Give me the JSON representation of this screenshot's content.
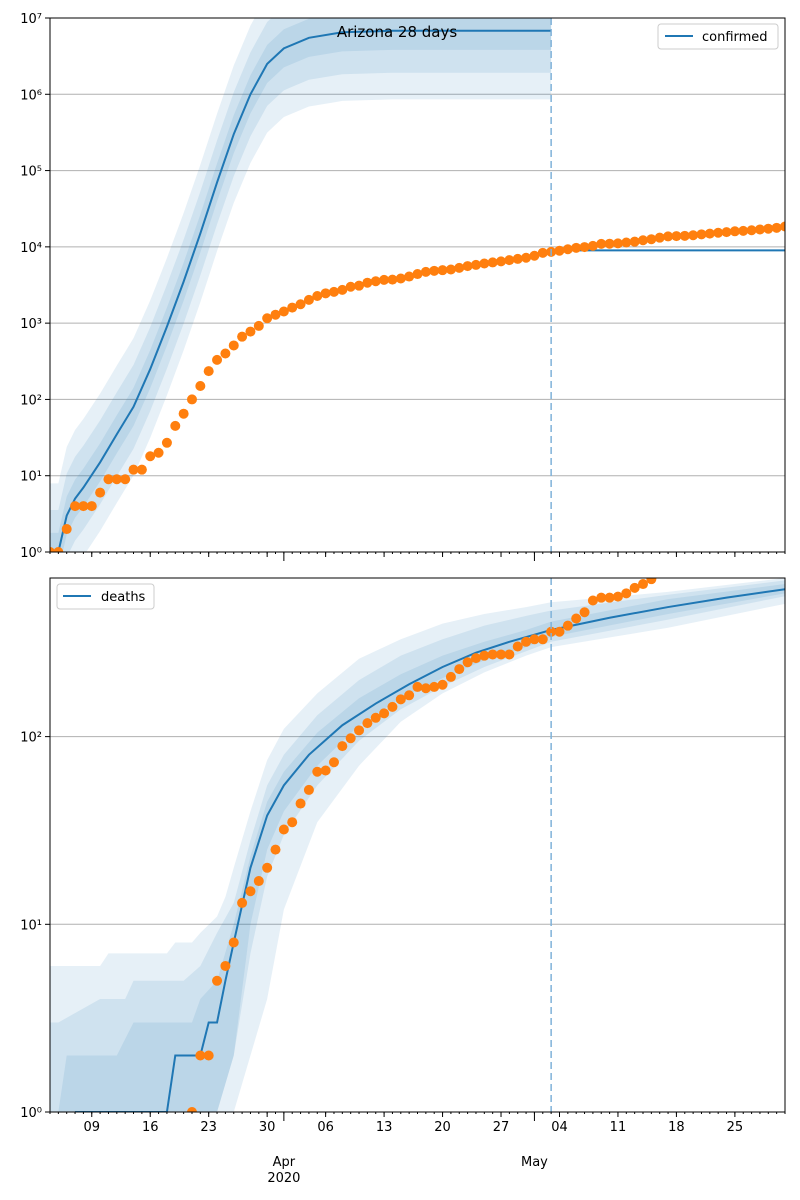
{
  "figure": {
    "title": "Arizona 28 days"
  },
  "colors": {
    "line": "#1f77b4",
    "observed": "#ff7f0e",
    "band": "#1f77b4",
    "grid": "#b0b0b0",
    "vline": "#7fb2d9"
  },
  "x_axis": {
    "day_ticks": [
      "09",
      "16",
      "23",
      "30",
      "06",
      "13",
      "20",
      "27",
      "04",
      "11",
      "18",
      "25"
    ],
    "month_ticks": [
      "Apr\n2020",
      "May"
    ],
    "range": [
      "2020-03-04",
      "2020-05-31"
    ],
    "forecast_start": "2020-05-03"
  },
  "chart_data": [
    {
      "type": "line",
      "title": "Arizona 28 days",
      "yscale": "log",
      "ylim": [
        1,
        10000000
      ],
      "yticks": [
        "10⁰",
        "10¹",
        "10²",
        "10³",
        "10⁴",
        "10⁵",
        "10⁶",
        "10⁷"
      ],
      "legend": {
        "label": "confirmed",
        "placement": "top-right"
      },
      "grid": "y-major",
      "model_median": {
        "x": [
          "2020-03-05",
          "2020-03-06",
          "2020-03-07",
          "2020-03-08",
          "2020-03-10",
          "2020-03-12",
          "2020-03-14",
          "2020-03-16",
          "2020-03-18",
          "2020-03-20",
          "2020-03-22",
          "2020-03-24",
          "2020-03-26",
          "2020-03-28",
          "2020-03-30",
          "2020-04-01",
          "2020-04-04",
          "2020-04-08",
          "2020-04-14",
          "2020-05-03"
        ],
        "y": [
          1,
          3,
          5,
          7,
          15,
          35,
          80,
          250,
          900,
          3500,
          15000,
          70000,
          300000,
          1000000,
          2500000,
          4000000,
          5500000,
          6500000,
          6800000,
          6800000
        ]
      },
      "model_after_forecast": {
        "x": [
          "2020-05-03",
          "2020-05-31"
        ],
        "y": [
          9000,
          9000
        ]
      },
      "bands_log10_halfwidth": [
        0.25,
        0.55,
        0.9
      ],
      "observed": {
        "x": [
          "2020-03-04",
          "2020-03-05",
          "2020-03-06",
          "2020-03-07",
          "2020-03-08",
          "2020-03-09",
          "2020-03-10",
          "2020-03-11",
          "2020-03-12",
          "2020-03-13",
          "2020-03-14",
          "2020-03-15",
          "2020-03-16",
          "2020-03-17",
          "2020-03-18",
          "2020-03-19",
          "2020-03-20",
          "2020-03-21",
          "2020-03-22",
          "2020-03-23",
          "2020-03-24",
          "2020-03-25",
          "2020-03-26",
          "2020-03-27",
          "2020-03-28",
          "2020-03-29",
          "2020-03-30",
          "2020-03-31",
          "2020-04-01",
          "2020-04-02",
          "2020-04-03",
          "2020-04-04",
          "2020-04-05",
          "2020-04-06",
          "2020-04-07",
          "2020-04-08",
          "2020-04-09",
          "2020-04-10",
          "2020-04-11",
          "2020-04-12",
          "2020-04-13",
          "2020-04-14",
          "2020-04-15",
          "2020-04-16",
          "2020-04-17",
          "2020-04-18",
          "2020-04-19",
          "2020-04-20",
          "2020-04-21",
          "2020-04-22",
          "2020-04-23",
          "2020-04-24",
          "2020-04-25",
          "2020-04-26",
          "2020-04-27",
          "2020-04-28",
          "2020-04-29",
          "2020-04-30",
          "2020-05-01",
          "2020-05-02",
          "2020-05-03",
          "2020-05-04",
          "2020-05-05",
          "2020-05-06",
          "2020-05-07",
          "2020-05-08",
          "2020-05-09",
          "2020-05-10",
          "2020-05-11",
          "2020-05-12",
          "2020-05-13",
          "2020-05-14",
          "2020-05-15",
          "2020-05-16",
          "2020-05-17",
          "2020-05-18",
          "2020-05-19",
          "2020-05-20",
          "2020-05-21",
          "2020-05-22",
          "2020-05-23",
          "2020-05-24",
          "2020-05-25",
          "2020-05-26",
          "2020-05-27",
          "2020-05-28",
          "2020-05-29",
          "2020-05-30",
          "2020-05-31"
        ],
        "y": [
          1,
          1,
          2,
          4,
          4,
          4,
          6,
          9,
          9,
          9,
          12,
          12,
          18,
          20,
          27,
          45,
          65,
          100,
          150,
          235,
          330,
          400,
          510,
          665,
          775,
          920,
          1160,
          1290,
          1420,
          1600,
          1770,
          2020,
          2270,
          2460,
          2570,
          2730,
          3000,
          3100,
          3390,
          3540,
          3690,
          3720,
          3850,
          4080,
          4400,
          4700,
          4850,
          4950,
          5050,
          5300,
          5600,
          5800,
          6050,
          6250,
          6450,
          6700,
          6950,
          7200,
          7650,
          8350,
          8600,
          8900,
          9300,
          9710,
          9930,
          10300,
          10950,
          11000,
          11100,
          11400,
          11700,
          12200,
          12600,
          13200,
          13700,
          13850,
          13950,
          14200,
          14600,
          14900,
          15300,
          15600,
          16000,
          16200,
          16500,
          16900,
          17300,
          17750,
          18500
        ]
      }
    },
    {
      "type": "line",
      "yscale": "log",
      "ylim": [
        1,
        700
      ],
      "yticks": [
        "10⁰",
        "10¹",
        "10²"
      ],
      "legend": {
        "label": "deaths",
        "placement": "top-left"
      },
      "grid": "y-major",
      "model_median": {
        "x": [
          "2020-03-07",
          "2020-03-18",
          "2020-03-19",
          "2020-03-22",
          "2020-03-23",
          "2020-03-24",
          "2020-03-25",
          "2020-03-26",
          "2020-03-28",
          "2020-03-30",
          "2020-04-01",
          "2020-04-04",
          "2020-04-08",
          "2020-04-12",
          "2020-04-16",
          "2020-04-20",
          "2020-04-24",
          "2020-04-28",
          "2020-05-03",
          "2020-05-10",
          "2020-05-17",
          "2020-05-24",
          "2020-05-31"
        ],
        "y": [
          1,
          1,
          2,
          2,
          3,
          3,
          5,
          8,
          20,
          38,
          55,
          80,
          115,
          150,
          190,
          235,
          280,
          320,
          370,
          430,
          490,
          550,
          610
        ]
      },
      "band_sets": [
        {
          "x": [
            "2020-03-04",
            "2020-03-10",
            "2020-03-11",
            "2020-03-18",
            "2020-03-19",
            "2020-03-21",
            "2020-03-22",
            "2020-03-24",
            "2020-03-25",
            "2020-03-26",
            "2020-03-28",
            "2020-03-30",
            "2020-04-01",
            "2020-04-05",
            "2020-04-10",
            "2020-04-15",
            "2020-04-20",
            "2020-04-25",
            "2020-04-30",
            "2020-05-03",
            "2020-05-17",
            "2020-05-31"
          ],
          "lo": [
            1,
            1,
            1,
            1,
            1,
            1,
            1,
            1,
            1,
            1,
            2,
            4,
            12,
            35,
            70,
            120,
            170,
            220,
            270,
            300,
            380,
            510
          ],
          "hi": [
            6,
            6,
            7,
            7,
            8,
            8,
            9,
            11,
            14,
            20,
            40,
            75,
            110,
            170,
            260,
            330,
            400,
            450,
            490,
            520,
            590,
            700
          ]
        },
        {
          "x": [
            "2020-03-04",
            "2020-03-05",
            "2020-03-10",
            "2020-03-13",
            "2020-03-14",
            "2020-03-20",
            "2020-03-22",
            "2020-03-24",
            "2020-03-26",
            "2020-03-28",
            "2020-03-30",
            "2020-04-01",
            "2020-04-05",
            "2020-04-10",
            "2020-04-15",
            "2020-04-20",
            "2020-04-25",
            "2020-04-30",
            "2020-05-03",
            "2020-05-17",
            "2020-05-31"
          ],
          "lo": [
            1,
            1,
            1,
            1,
            1,
            1,
            1,
            1,
            2,
            7,
            18,
            30,
            55,
            95,
            140,
            185,
            235,
            285,
            320,
            420,
            560
          ],
          "hi": [
            3,
            3,
            4,
            4,
            5,
            5,
            6,
            9,
            13,
            28,
            55,
            80,
            130,
            200,
            270,
            330,
            390,
            440,
            470,
            570,
            680
          ]
        },
        {
          "x": [
            "2020-03-05",
            "2020-03-06",
            "2020-03-12",
            "2020-03-14",
            "2020-03-21",
            "2020-03-22",
            "2020-03-24",
            "2020-03-26",
            "2020-03-28",
            "2020-03-30",
            "2020-04-01",
            "2020-04-05",
            "2020-04-10",
            "2020-04-15",
            "2020-04-20",
            "2020-04-25",
            "2020-04-30",
            "2020-05-03",
            "2020-05-17",
            "2020-05-31"
          ],
          "lo": [
            1,
            1,
            1,
            1,
            1,
            1,
            1,
            2,
            10,
            25,
            40,
            70,
            115,
            160,
            205,
            255,
            300,
            340,
            450,
            580
          ],
          "hi": [
            1,
            2,
            2,
            3,
            3,
            4,
            5,
            10,
            23,
            45,
            65,
            105,
            160,
            215,
            270,
            320,
            370,
            410,
            540,
            650
          ]
        }
      ],
      "observed": {
        "x": [
          "2020-03-21",
          "2020-03-22",
          "2020-03-23",
          "2020-03-24",
          "2020-03-25",
          "2020-03-26",
          "2020-03-27",
          "2020-03-28",
          "2020-03-29",
          "2020-03-30",
          "2020-03-31",
          "2020-04-01",
          "2020-04-02",
          "2020-04-03",
          "2020-04-04",
          "2020-04-05",
          "2020-04-06",
          "2020-04-07",
          "2020-04-08",
          "2020-04-09",
          "2020-04-10",
          "2020-04-11",
          "2020-04-12",
          "2020-04-13",
          "2020-04-14",
          "2020-04-15",
          "2020-04-16",
          "2020-04-17",
          "2020-04-18",
          "2020-04-19",
          "2020-04-20",
          "2020-04-21",
          "2020-04-22",
          "2020-04-23",
          "2020-04-24",
          "2020-04-25",
          "2020-04-26",
          "2020-04-27",
          "2020-04-28",
          "2020-04-29",
          "2020-04-30",
          "2020-05-01",
          "2020-05-02",
          "2020-05-03",
          "2020-05-04",
          "2020-05-05",
          "2020-05-06",
          "2020-05-07",
          "2020-05-08",
          "2020-05-09",
          "2020-05-10",
          "2020-05-11",
          "2020-05-12",
          "2020-05-13",
          "2020-05-14",
          "2020-05-15"
        ],
        "y": [
          1,
          2,
          2,
          5,
          6,
          8,
          13,
          15,
          17,
          20,
          25,
          32,
          35,
          44,
          52,
          65,
          66,
          73,
          89,
          98,
          108,
          118,
          126,
          133,
          144,
          158,
          166,
          184,
          181,
          184,
          189,
          208,
          229,
          249,
          262,
          270,
          274,
          274,
          274,
          302,
          320,
          330,
          330,
          362,
          362,
          390,
          426,
          460,
          531,
          550,
          550,
          557,
          580,
          620,
          650,
          690
        ]
      }
    }
  ]
}
